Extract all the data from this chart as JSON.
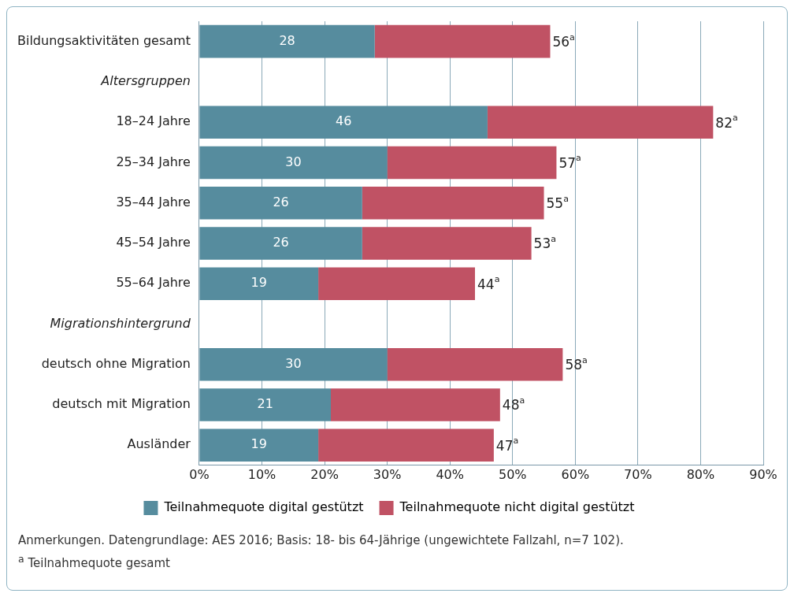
{
  "chart_data": {
    "type": "bar",
    "orientation": "horizontal",
    "stacked": true,
    "categories": [
      "Bildungsaktivitäten gesamt",
      "Altersgruppen",
      "18–24 Jahre",
      "25–34 Jahre",
      "35–44 Jahre",
      "45–54 Jahre",
      "55–64 Jahre",
      "Migrationshintergrund",
      "deutsch ohne Migration",
      "deutsch mit Migration",
      "Ausländer"
    ],
    "series": [
      {
        "name": "Teilnahmequote digital gestützt",
        "color": "#568c9e",
        "values": [
          28,
          null,
          46,
          30,
          26,
          26,
          19,
          null,
          30,
          21,
          19
        ],
        "value_labels": [
          "28",
          null,
          "46",
          "30",
          "26",
          "26",
          "19",
          null,
          "30",
          "21",
          "19"
        ]
      },
      {
        "name": "Teilnahmequote nicht digital gestützt",
        "color": "#c05264",
        "values": [
          28,
          null,
          36,
          27,
          29,
          27,
          25,
          null,
          28,
          27,
          28
        ]
      }
    ],
    "totals": [
      "56$^{a}$",
      null,
      "82$^{a}$",
      "57$^{a}$",
      "55$^{a}$",
      "53$^{a}$",
      "44$^{a}$",
      null,
      "58$^{a}$",
      "48$^{a}$",
      "47$^{a}$"
    ],
    "xlim": [
      0,
      90
    ],
    "xticks": [
      {
        "value": 0,
        "label": "0%"
      },
      {
        "value": 10,
        "label": "10%"
      },
      {
        "value": 20,
        "label": "20%"
      },
      {
        "value": 30,
        "label": "30%"
      },
      {
        "value": 40,
        "label": "40%"
      },
      {
        "value": 50,
        "label": "50%"
      },
      {
        "value": 60,
        "label": "60%"
      },
      {
        "value": 70,
        "label": "70%"
      },
      {
        "value": 80,
        "label": "80%"
      },
      {
        "value": 90,
        "label": "90%"
      }
    ],
    "grid": "x",
    "legend": "bottom",
    "annotations": [
      "Anmerkungen. Datengrundlage: AES 2016; Basis: 18- bis 64-Jährige (ungewichtete Fallzahl, n=7 102).",
      "$^{a}$ Teilnahmequote gesamt"
    ]
  }
}
